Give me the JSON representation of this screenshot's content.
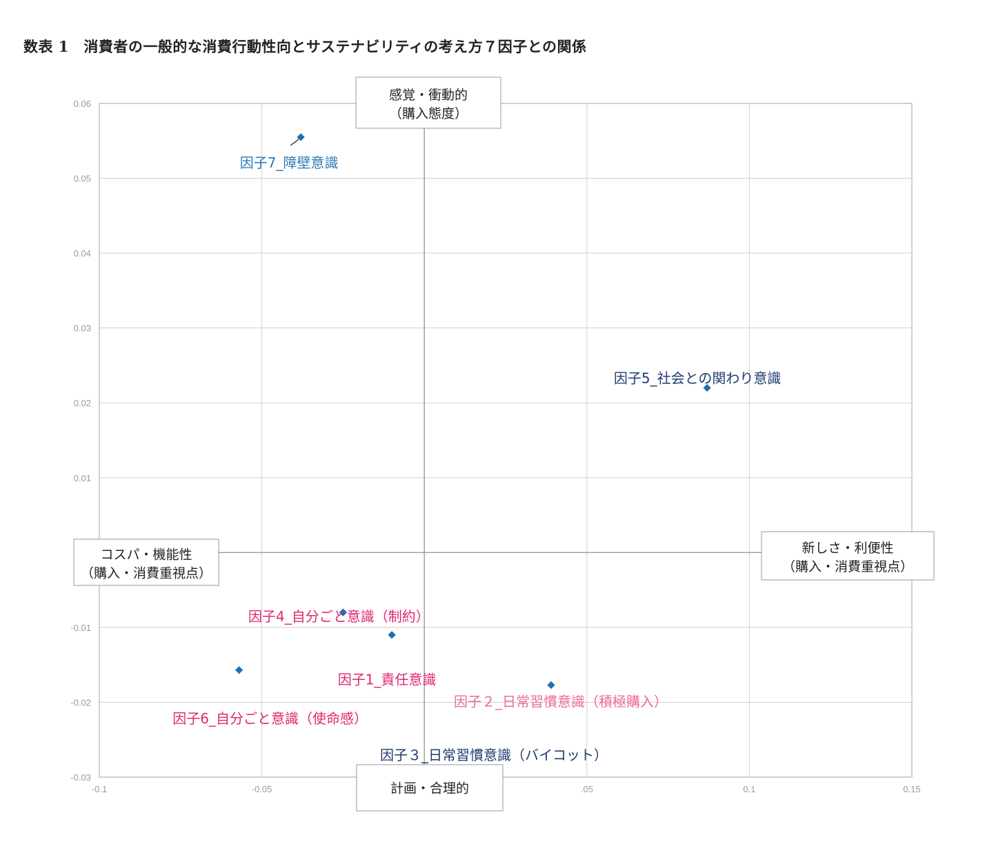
{
  "title": "数表 1　消費者の一般的な消費行動性向とサステナビリティの考え方７因子との関係",
  "quadrant_labels": {
    "top": [
      "感覚・衝動的",
      "（購入態度）"
    ],
    "left": [
      "コスパ・機能性",
      "（購入・消費重視点）"
    ],
    "right": [
      "新しさ・利便性",
      "（購入・消費重視点）"
    ],
    "bottom": [
      "計画・合理的"
    ]
  },
  "colors": {
    "marker": "#1f6fb5",
    "blue_label": "#2a7ab8",
    "navy_label": "#1f3a6e",
    "magenta_label": "#e0266f",
    "pink_label": "#ec6a9c",
    "grid": "#cfcfcf",
    "axis": "#9a9a9a",
    "frame": "#b0b0b0"
  },
  "chart_data": {
    "type": "scatter",
    "xlim": [
      -0.1,
      0.15
    ],
    "ylim": [
      -0.03,
      0.06
    ],
    "x_ticks": [
      -0.1,
      -0.05,
      0,
      0.05,
      0.1,
      0.15
    ],
    "x_tick_labels": [
      "-0.1",
      "-0.05",
      "",
      ".05",
      "0.1",
      "0.15"
    ],
    "y_ticks": [
      -0.03,
      -0.02,
      -0.01,
      0,
      0.01,
      0.02,
      0.03,
      0.04,
      0.05,
      0.06
    ],
    "y_tick_labels": [
      "-0.03",
      "-0.02",
      "-0.01",
      "",
      "0.01",
      "0.02",
      "0.03",
      "0.04",
      "0.05",
      "0.06"
    ],
    "grid": true,
    "points": [
      {
        "label": "因子7_障壁意識",
        "x": -0.038,
        "y": 0.0555,
        "color": "blue_label"
      },
      {
        "label": "因子5_社会との関わり意識",
        "x": 0.087,
        "y": 0.022,
        "color": "navy_label"
      },
      {
        "label": "因子4_自分ごと意識（制約）",
        "x": -0.025,
        "y": -0.008,
        "color": "magenta_label"
      },
      {
        "label": "因子1_責任意識",
        "x": -0.01,
        "y": -0.011,
        "color": "magenta_label"
      },
      {
        "label": "因子6_自分ごと意識（使命感）",
        "x": -0.057,
        "y": -0.0157,
        "color": "magenta_label"
      },
      {
        "label": "因子２_日常習慣意識（積極購入）",
        "x": 0.039,
        "y": -0.0177,
        "color": "pink_label"
      },
      {
        "label": "因子３_日常習慣意識（バイコット）",
        "x": null,
        "y": null,
        "color": "navy_label"
      }
    ]
  }
}
